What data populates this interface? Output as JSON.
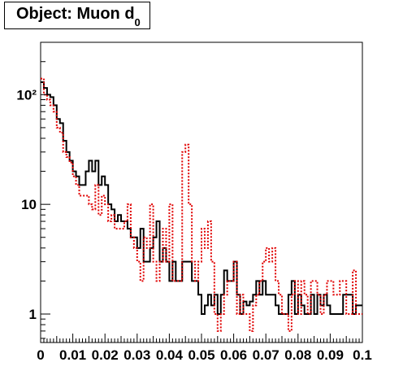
{
  "title": {
    "main": "Object: Muon d",
    "subscript": "0"
  },
  "chart_data": {
    "type": "line",
    "title": "Object: Muon d0",
    "xlabel": "",
    "ylabel": "",
    "xlim": [
      0,
      0.1
    ],
    "ylim": [
      0.55,
      300
    ],
    "yscale": "log",
    "grid": false,
    "bin_width": 0.001,
    "x_tick_labels": [
      "0",
      "0.01",
      "0.02",
      "0.03",
      "0.04",
      "0.05",
      "0.06",
      "0.07",
      "0.08",
      "0.09",
      "0.1"
    ],
    "y_tick_labels": [
      "1",
      "10",
      "10²"
    ],
    "series": [
      {
        "color": "#000000",
        "style": "solid",
        "values": [
          130,
          115,
          100,
          95,
          80,
          60,
          55,
          38,
          30,
          25,
          20,
          18,
          15,
          15,
          20,
          25,
          20,
          25,
          15,
          18,
          15,
          10,
          9,
          7,
          8,
          7,
          7,
          6,
          5,
          5,
          4,
          6,
          3,
          3,
          4,
          5,
          7,
          3,
          4,
          3,
          2,
          3,
          2,
          2,
          3,
          3,
          3,
          2,
          2,
          1.5,
          1,
          1.2,
          1.5,
          1.2,
          1.5,
          1,
          1.5,
          2.5,
          2,
          2,
          3,
          1.5,
          1,
          1.3,
          1.2,
          1.3,
          1.5,
          2,
          1.5,
          2,
          1.5,
          1.5,
          1.5,
          1.2,
          1,
          1,
          1,
          1.5,
          2,
          1,
          1.5,
          1.2,
          1,
          1,
          1.5,
          1,
          1.5,
          1.2,
          1.5,
          1.2,
          1,
          1,
          1,
          1,
          1.5,
          1.5,
          1.5,
          1,
          1.2,
          1.2
        ]
      },
      {
        "color": "#e00000",
        "style": "dotted",
        "values": [
          140,
          100,
          90,
          80,
          70,
          50,
          45,
          30,
          27,
          24,
          18,
          15,
          12,
          12,
          12,
          10,
          9,
          15,
          8,
          12,
          10,
          7,
          8,
          6,
          6,
          6,
          7,
          10,
          5,
          4,
          3,
          2,
          5,
          4,
          10,
          3,
          2,
          3,
          6,
          3,
          10,
          2,
          2,
          2,
          30,
          35,
          10,
          3,
          2,
          3,
          6,
          4,
          7,
          3,
          1,
          0.7,
          1,
          1.5,
          2,
          2,
          3,
          1,
          1.5,
          1,
          1,
          0.7,
          1.2,
          1.5,
          2,
          3,
          4,
          3,
          4,
          2,
          1.5,
          1,
          1,
          0.7,
          1.5,
          2,
          1,
          2,
          1.5,
          1,
          2,
          2,
          1.5,
          1,
          1.5,
          2,
          2,
          1.5,
          1.5,
          2,
          2,
          1,
          1,
          2.5,
          1,
          1
        ]
      }
    ]
  }
}
